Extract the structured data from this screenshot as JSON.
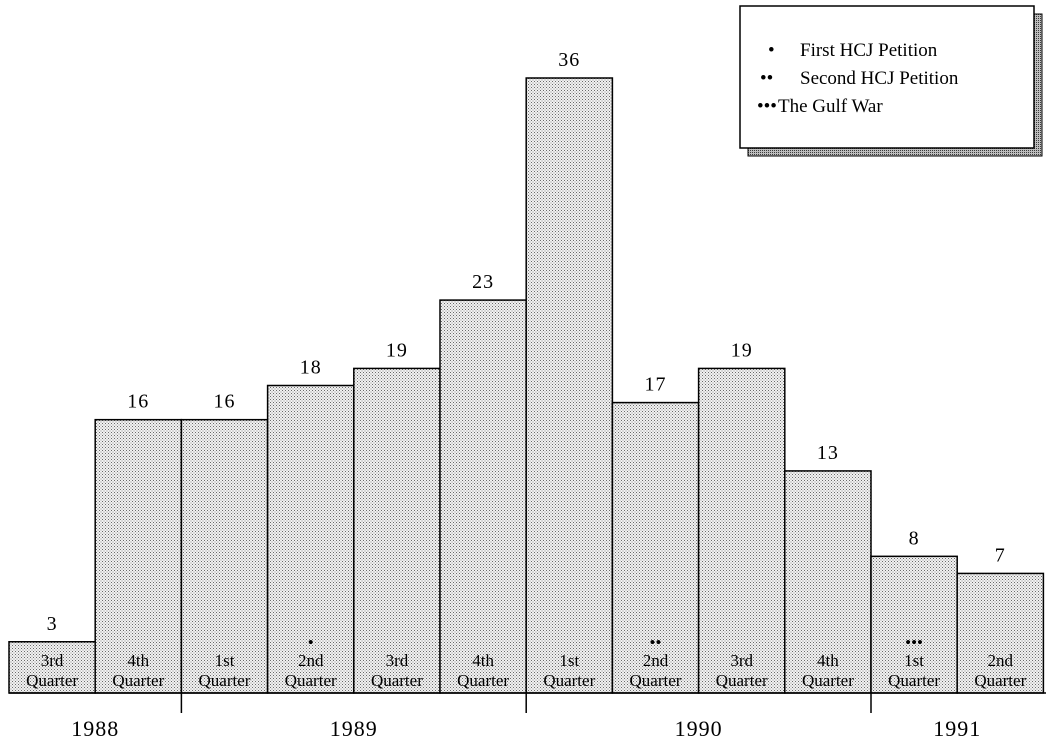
{
  "chart_data": {
    "type": "bar",
    "title": "",
    "xlabel": "",
    "ylabel": "",
    "ylim": [
      0,
      36
    ],
    "categories": [
      {
        "quarter": [
          "3rd",
          "Quarter"
        ],
        "year": "1988"
      },
      {
        "quarter": [
          "4th",
          "Quarter"
        ],
        "year": "1988"
      },
      {
        "quarter": [
          "1st",
          "Quarter"
        ],
        "year": "1989"
      },
      {
        "quarter": [
          "2nd",
          "Quarter"
        ],
        "year": "1989"
      },
      {
        "quarter": [
          "3rd",
          "Quarter"
        ],
        "year": "1989"
      },
      {
        "quarter": [
          "4th",
          "Quarter"
        ],
        "year": "1989"
      },
      {
        "quarter": [
          "1st",
          "Quarter"
        ],
        "year": "1990"
      },
      {
        "quarter": [
          "2nd",
          "Quarter"
        ],
        "year": "1990"
      },
      {
        "quarter": [
          "3rd",
          "Quarter"
        ],
        "year": "1990"
      },
      {
        "quarter": [
          "4th",
          "Quarter"
        ],
        "year": "1990"
      },
      {
        "quarter": [
          "1st",
          "Quarter"
        ],
        "year": "1991"
      },
      {
        "quarter": [
          "2nd",
          "Quarter"
        ],
        "year": "1991"
      }
    ],
    "values": [
      3,
      16,
      16,
      18,
      19,
      23,
      36,
      17,
      19,
      13,
      8,
      7
    ],
    "markers": [
      {
        "index": 3,
        "symbol": "•"
      },
      {
        "index": 7,
        "symbol": "••"
      },
      {
        "index": 10,
        "symbol": "•••"
      }
    ],
    "years": [
      "1988",
      "1989",
      "1990",
      "1991"
    ],
    "legend": {
      "position": "top-right",
      "entries": [
        {
          "symbol": "•",
          "label": "First HCJ Petition"
        },
        {
          "symbol": "••",
          "label": "Second HCJ Petition"
        },
        {
          "symbol": "•••",
          "label": "The Gulf War"
        }
      ]
    },
    "grid": false,
    "colors": {
      "bar_fill": "#e6e6e6",
      "stroke": "#000000"
    }
  }
}
